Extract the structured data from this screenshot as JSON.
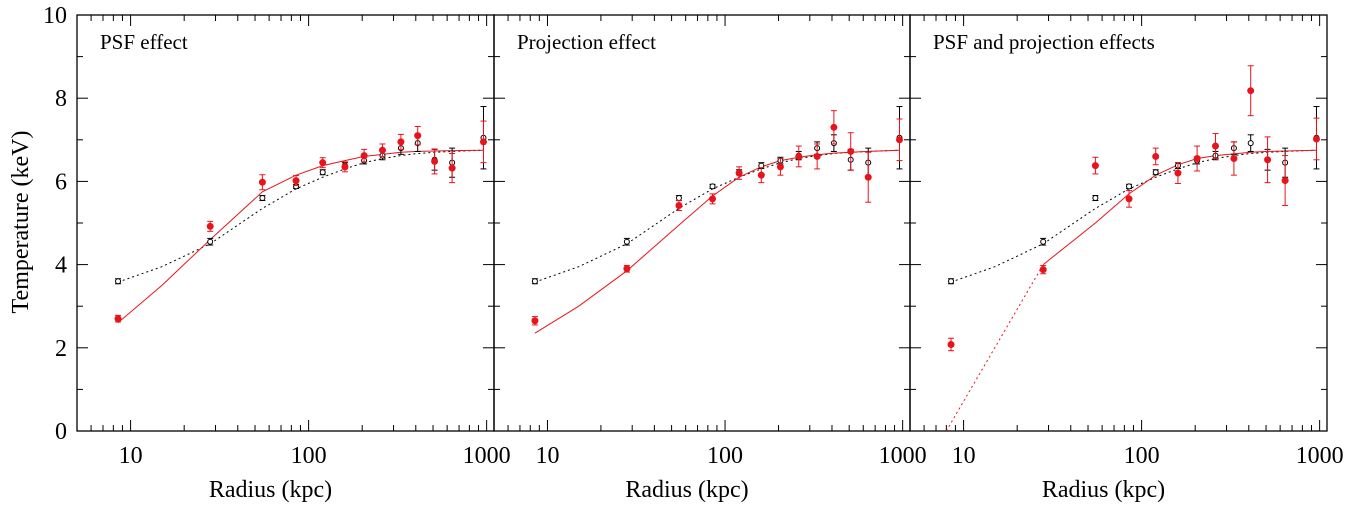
{
  "figure": {
    "ylabel": "Temperature (keV)",
    "xlabel": "Radius  (kpc)"
  },
  "colors": {
    "reference": "#000000",
    "corrected": "#e8141b"
  },
  "chart_data": [
    {
      "type": "scatter",
      "title": "PSF effect",
      "xlabel": "Radius  (kpc)",
      "ylabel": "Temperature (keV)",
      "xscale": "log",
      "xlim": [
        5,
        1100
      ],
      "ylim": [
        0,
        10
      ],
      "xticks": [
        "10",
        "100",
        "1000"
      ],
      "yticks": [
        "0",
        "2",
        "4",
        "6",
        "8",
        "10"
      ],
      "grid": false,
      "series": [
        {
          "style": "open black circles with error bars, dotted black model",
          "x": [
            8.5,
            28,
            55,
            85,
            120,
            160,
            205,
            260,
            330,
            410,
            510,
            640,
            960
          ],
          "y": [
            3.6,
            4.55,
            5.6,
            5.88,
            6.22,
            6.38,
            6.5,
            6.62,
            6.8,
            6.92,
            6.52,
            6.45,
            7.05
          ],
          "yerr": [
            0.06,
            0.08,
            0.06,
            0.05,
            0.06,
            0.07,
            0.08,
            0.1,
            0.15,
            0.2,
            0.25,
            0.35,
            0.75
          ],
          "model": {
            "x": [
              8.5,
              15,
              28,
              55,
              85,
              120,
              160,
              205,
              260,
              330,
              410,
              510,
              640,
              960
            ],
            "y": [
              3.58,
              3.95,
              4.5,
              5.35,
              5.82,
              6.1,
              6.3,
              6.45,
              6.55,
              6.62,
              6.67,
              6.7,
              6.72,
              6.75
            ]
          }
        },
        {
          "style": "filled red circles with error bars, solid red model",
          "x": [
            8.5,
            28,
            55,
            85,
            120,
            160,
            205,
            260,
            330,
            410,
            510,
            640,
            960
          ],
          "y": [
            2.7,
            4.92,
            5.98,
            6.02,
            6.45,
            6.35,
            6.62,
            6.75,
            6.95,
            7.1,
            6.48,
            6.32,
            6.95
          ],
          "yerr": [
            0.08,
            0.12,
            0.18,
            0.12,
            0.12,
            0.12,
            0.15,
            0.15,
            0.18,
            0.22,
            0.3,
            0.35,
            0.5
          ],
          "model": {
            "x": [
              8.5,
              15,
              28,
              55,
              85,
              120,
              160,
              205,
              260,
              330,
              410,
              510,
              640,
              960
            ],
            "y": [
              2.6,
              3.5,
              4.6,
              5.75,
              6.15,
              6.38,
              6.5,
              6.6,
              6.65,
              6.7,
              6.72,
              6.73,
              6.74,
              6.75
            ]
          }
        }
      ]
    },
    {
      "type": "scatter",
      "title": "Projection effect",
      "xlabel": "Radius  (kpc)",
      "ylabel": "Temperature (keV)",
      "xscale": "log",
      "xlim": [
        5,
        1100
      ],
      "ylim": [
        0,
        10
      ],
      "xticks": [
        "10",
        "100",
        "1000"
      ],
      "yticks": [
        "0",
        "2",
        "4",
        "6",
        "8",
        "10"
      ],
      "grid": false,
      "series": [
        {
          "style": "open black circles with error bars, dotted black model",
          "x": [
            8.5,
            28,
            55,
            85,
            120,
            160,
            205,
            260,
            330,
            410,
            510,
            640,
            960
          ],
          "y": [
            3.6,
            4.55,
            5.6,
            5.88,
            6.22,
            6.38,
            6.5,
            6.62,
            6.8,
            6.92,
            6.52,
            6.45,
            7.05
          ],
          "yerr": [
            0.06,
            0.08,
            0.06,
            0.05,
            0.06,
            0.07,
            0.08,
            0.1,
            0.15,
            0.2,
            0.25,
            0.35,
            0.75
          ],
          "model": {
            "x": [
              8.5,
              15,
              28,
              55,
              85,
              120,
              160,
              205,
              260,
              330,
              410,
              510,
              640,
              960
            ],
            "y": [
              3.58,
              3.95,
              4.5,
              5.35,
              5.82,
              6.1,
              6.3,
              6.45,
              6.55,
              6.62,
              6.67,
              6.7,
              6.72,
              6.75
            ]
          }
        },
        {
          "style": "filled red circles with error bars, solid red model",
          "x": [
            8.5,
            28,
            55,
            85,
            120,
            160,
            205,
            260,
            330,
            410,
            510,
            640,
            960
          ],
          "y": [
            2.65,
            3.9,
            5.42,
            5.58,
            6.2,
            6.15,
            6.35,
            6.6,
            6.6,
            7.3,
            6.72,
            6.1,
            7.0
          ],
          "yerr": [
            0.1,
            0.08,
            0.12,
            0.12,
            0.15,
            0.18,
            0.2,
            0.25,
            0.3,
            0.4,
            0.45,
            0.6,
            0.5
          ],
          "model": {
            "x": [
              8.5,
              15,
              28,
              55,
              85,
              120,
              160,
              205,
              260,
              330,
              410,
              510,
              640,
              960
            ],
            "y": [
              2.35,
              3.0,
              3.85,
              4.95,
              5.65,
              6.1,
              6.35,
              6.5,
              6.58,
              6.64,
              6.68,
              6.7,
              6.72,
              6.75
            ]
          }
        }
      ]
    },
    {
      "type": "scatter",
      "title": "PSF and projection effects",
      "xlabel": "Radius  (kpc)",
      "ylabel": "Temperature (keV)",
      "xscale": "log",
      "xlim": [
        5,
        1100
      ],
      "ylim": [
        0,
        10
      ],
      "xticks": [
        "10",
        "100",
        "1000"
      ],
      "yticks": [
        "0",
        "2",
        "4",
        "6",
        "8",
        "10"
      ],
      "grid": false,
      "series": [
        {
          "style": "open black circles with error bars, dotted black model",
          "x": [
            8.5,
            28,
            55,
            85,
            120,
            160,
            205,
            260,
            330,
            410,
            510,
            640,
            960
          ],
          "y": [
            3.6,
            4.55,
            5.6,
            5.88,
            6.22,
            6.38,
            6.5,
            6.62,
            6.8,
            6.92,
            6.52,
            6.45,
            7.05
          ],
          "yerr": [
            0.06,
            0.08,
            0.06,
            0.05,
            0.06,
            0.07,
            0.08,
            0.1,
            0.15,
            0.2,
            0.25,
            0.35,
            0.75
          ],
          "model": {
            "x": [
              8.5,
              15,
              28,
              55,
              85,
              120,
              160,
              205,
              260,
              330,
              410,
              510,
              640,
              960
            ],
            "y": [
              3.58,
              3.95,
              4.5,
              5.35,
              5.82,
              6.1,
              6.3,
              6.45,
              6.55,
              6.62,
              6.67,
              6.7,
              6.72,
              6.75
            ]
          }
        },
        {
          "style": "filled red circles with error bars, red model (dotted inward of 28 kpc, solid beyond)",
          "x": [
            8.5,
            28,
            55,
            85,
            120,
            160,
            205,
            260,
            330,
            410,
            510,
            640,
            960
          ],
          "y": [
            2.08,
            3.88,
            6.38,
            5.58,
            6.6,
            6.2,
            6.55,
            6.85,
            6.55,
            8.18,
            6.52,
            6.02,
            7.02
          ],
          "yerr": [
            0.15,
            0.1,
            0.2,
            0.2,
            0.2,
            0.25,
            0.3,
            0.3,
            0.4,
            0.6,
            0.55,
            0.6,
            0.5
          ],
          "model_dotted": {
            "x": [
              8.0,
              28
            ],
            "y": [
              0.0,
              4.0
            ]
          },
          "model": {
            "x": [
              28,
              55,
              85,
              120,
              160,
              205,
              260,
              330,
              410,
              510,
              640,
              960
            ],
            "y": [
              4.0,
              5.0,
              5.7,
              6.15,
              6.4,
              6.55,
              6.62,
              6.66,
              6.7,
              6.72,
              6.73,
              6.75
            ]
          }
        }
      ]
    }
  ]
}
